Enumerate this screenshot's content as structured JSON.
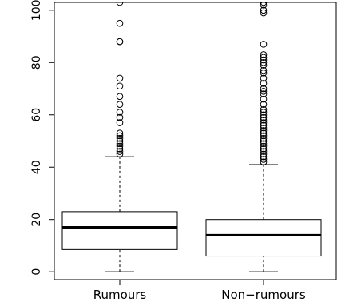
{
  "chart_data": {
    "type": "boxplot",
    "title": "",
    "xlabel": "",
    "ylabel": "",
    "ylim": [
      -3,
      103
    ],
    "y_ticks": [
      0,
      20,
      40,
      60,
      80,
      100
    ],
    "grid": false,
    "categories": [
      "Rumours",
      "Non−rumours"
    ],
    "boxes": [
      {
        "category": "Rumours",
        "whisker_low": 0,
        "q1": 8.5,
        "median": 17,
        "q3": 23,
        "whisker_high": 44,
        "outliers": [
          45,
          46,
          47,
          48,
          49,
          50,
          51,
          52,
          53,
          57,
          59,
          61,
          64,
          67,
          71,
          74,
          88,
          88,
          95,
          103
        ]
      },
      {
        "category": "Non−rumours",
        "whisker_low": 0,
        "q1": 6,
        "median": 14,
        "q3": 20,
        "whisker_high": 41,
        "outliers": [
          42,
          43,
          44,
          45,
          46,
          47,
          48,
          49,
          50,
          51,
          52,
          53,
          54,
          55,
          56,
          57,
          58,
          59,
          60,
          61,
          62,
          64,
          66,
          68,
          69,
          70,
          72,
          74,
          76,
          77,
          79,
          80,
          81,
          82,
          83,
          87,
          99,
          100,
          102,
          103
        ]
      }
    ]
  }
}
